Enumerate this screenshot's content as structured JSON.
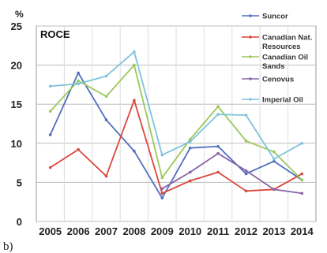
{
  "panel_label": "b)",
  "chart_data": {
    "type": "line",
    "title": "ROCE",
    "yunit": "%",
    "xlabel": "",
    "ylabel": "",
    "categories": [
      "2005",
      "2006",
      "2007",
      "2008",
      "2009",
      "2010",
      "2011",
      "2012",
      "2013",
      "2014"
    ],
    "yticks": [
      0,
      5,
      10,
      15,
      20,
      25
    ],
    "ylim": [
      0,
      25
    ],
    "grid": true,
    "legend_position": "right",
    "series": [
      {
        "name": "Suncor",
        "color": "#4f6fbe",
        "values": [
          11.1,
          19.0,
          13.0,
          9.0,
          3.0,
          9.4,
          9.6,
          6.1,
          7.7,
          5.3
        ]
      },
      {
        "name": "Canadian Nat. Resources",
        "color": "#d9473b",
        "values": [
          6.9,
          9.2,
          5.8,
          15.5,
          3.6,
          5.2,
          6.3,
          3.9,
          4.1,
          6.1
        ]
      },
      {
        "name": "Canadian Oil Sands",
        "color": "#9cc85a",
        "values": [
          14.1,
          18.0,
          16.0,
          20.0,
          5.6,
          10.5,
          14.7,
          10.3,
          8.9,
          5.3
        ]
      },
      {
        "name": "Cenovus",
        "color": "#8a64a8",
        "values": [
          null,
          null,
          null,
          null,
          4.2,
          6.3,
          8.7,
          6.5,
          4.1,
          3.6
        ]
      },
      {
        "name": "Imperial Oil",
        "color": "#7fc3dc",
        "values": [
          17.3,
          17.6,
          18.6,
          21.7,
          8.5,
          10.2,
          13.7,
          13.6,
          8.0,
          10.0
        ]
      }
    ]
  }
}
